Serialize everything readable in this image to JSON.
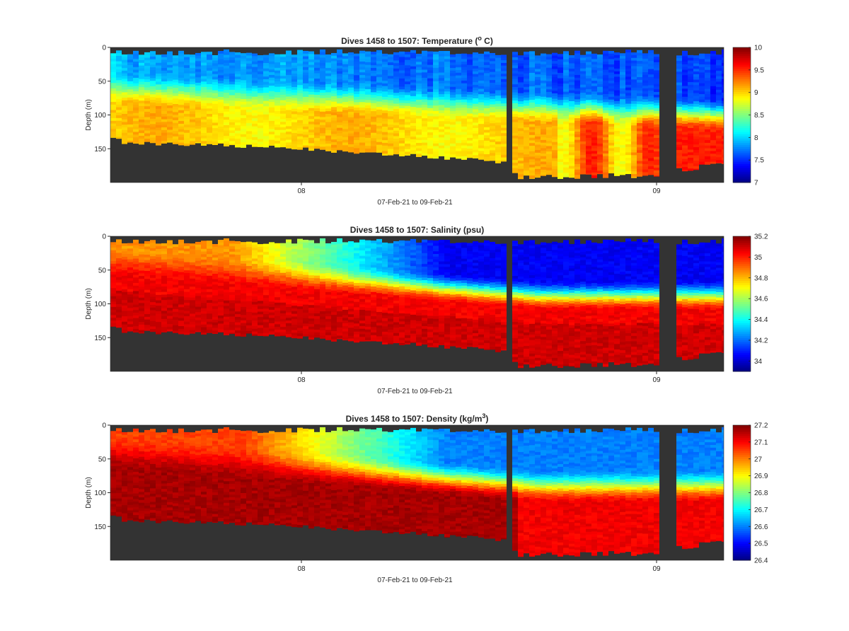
{
  "chart_data": [
    {
      "type": "heatmap",
      "variable": "temperature",
      "title_prefix": "Dives 1458 to 1507: Temperature (",
      "title_sup": "o",
      "title_suffix": " C)",
      "ylabel": "Depth (m)",
      "xlabel": "07-Feb-21 to 09-Feb-21",
      "x_ticks": [
        "08",
        "09"
      ],
      "y_ticks": [
        0,
        50,
        100,
        150
      ],
      "ylim": [
        0,
        200
      ],
      "y_reversed": true,
      "clim": [
        7,
        10
      ],
      "colorbar_ticks": [
        "7",
        "7.5",
        "8",
        "8.5",
        "9",
        "9.5",
        "10"
      ],
      "colormap": "jet",
      "profile": {
        "surface_value": 7.9,
        "deep_value": 9.0,
        "thermocline_depth_start": 70,
        "thermocline_depth_end": 110,
        "after_gap2_deep_value": 9.55
      }
    },
    {
      "type": "heatmap",
      "variable": "salinity",
      "title_prefix": "Dives 1458 to 1507: Salinity (psu)",
      "title_sup": "",
      "title_suffix": "",
      "ylabel": "Depth (m)",
      "xlabel": "07-Feb-21 to 09-Feb-21",
      "x_ticks": [
        "08",
        "09"
      ],
      "y_ticks": [
        0,
        50,
        100,
        150
      ],
      "ylim": [
        0,
        200
      ],
      "y_reversed": true,
      "clim": [
        33.9,
        35.2
      ],
      "colorbar_ticks": [
        "34",
        "34.2",
        "34.4",
        "34.6",
        "34.8",
        "35",
        "35.2"
      ],
      "colormap": "jet",
      "profile": {
        "surface_value_start": 34.85,
        "surface_value_end": 34.05,
        "deep_value": 35.05,
        "halocline_depth_start": 40,
        "halocline_depth_end": 90
      }
    },
    {
      "type": "heatmap",
      "variable": "density",
      "title_prefix": "Dives 1458 to 1507: Density (kg/m",
      "title_sup": "3",
      "title_suffix": ")",
      "ylabel": "Depth (m)",
      "xlabel": "07-Feb-21 to 09-Feb-21",
      "x_ticks": [
        "08",
        "09"
      ],
      "y_ticks": [
        0,
        50,
        100,
        150
      ],
      "ylim": [
        0,
        200
      ],
      "y_reversed": true,
      "clim": [
        26.4,
        27.2
      ],
      "colorbar_ticks": [
        "26.4",
        "26.5",
        "26.6",
        "26.7",
        "26.8",
        "26.9",
        "27",
        "27.1",
        "27.2"
      ],
      "colormap": "jet",
      "profile": {
        "surface_value_start": 27.05,
        "surface_value_end": 26.6,
        "deep_value": 27.17,
        "pycnocline_depth_start": 40,
        "pycnocline_depth_end": 90
      }
    }
  ],
  "colors": {
    "no_data": "#333333",
    "background": "#ffffff",
    "axis": "#262626"
  }
}
